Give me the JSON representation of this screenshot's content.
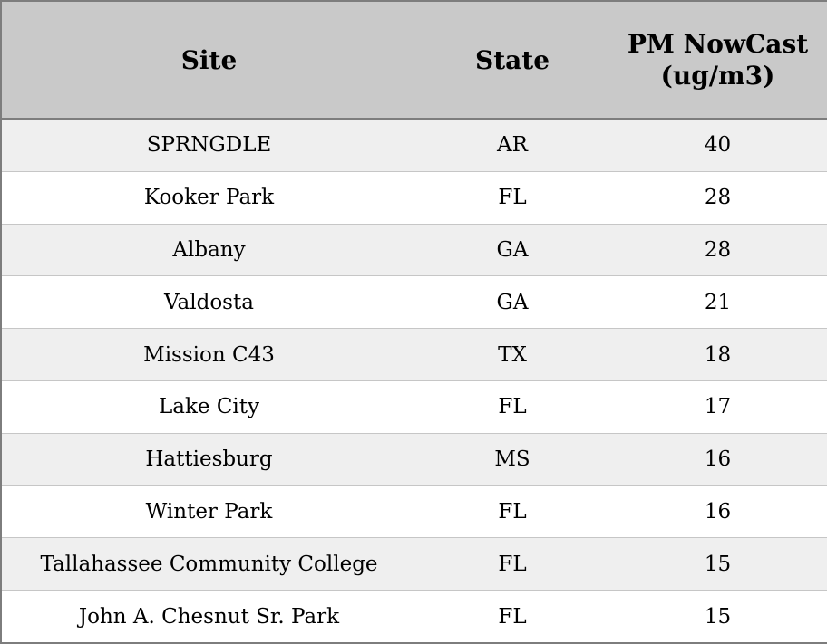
{
  "chart_data": {
    "type": "table",
    "title": "",
    "columns": [
      "Site",
      "State",
      "PM NowCast (ug/m3)"
    ],
    "rows": [
      [
        "SPRNGDLE",
        "AR",
        40
      ],
      [
        "Kooker Park",
        "FL",
        28
      ],
      [
        "Albany",
        "GA",
        28
      ],
      [
        "Valdosta",
        "GA",
        21
      ],
      [
        "Mission C43",
        "TX",
        18
      ],
      [
        "Lake City",
        "FL",
        17
      ],
      [
        "Hattiesburg",
        "MS",
        16
      ],
      [
        "Winter Park",
        "FL",
        16
      ],
      [
        "Tallahassee Community College",
        "FL",
        15
      ],
      [
        "John A. Chesnut Sr. Park",
        "FL",
        15
      ]
    ],
    "layout": {
      "header_background": "#c9c9c9",
      "row_alt_background": "#efefef",
      "row_background": "#ffffff",
      "border_color": "#7d7d7d"
    }
  }
}
